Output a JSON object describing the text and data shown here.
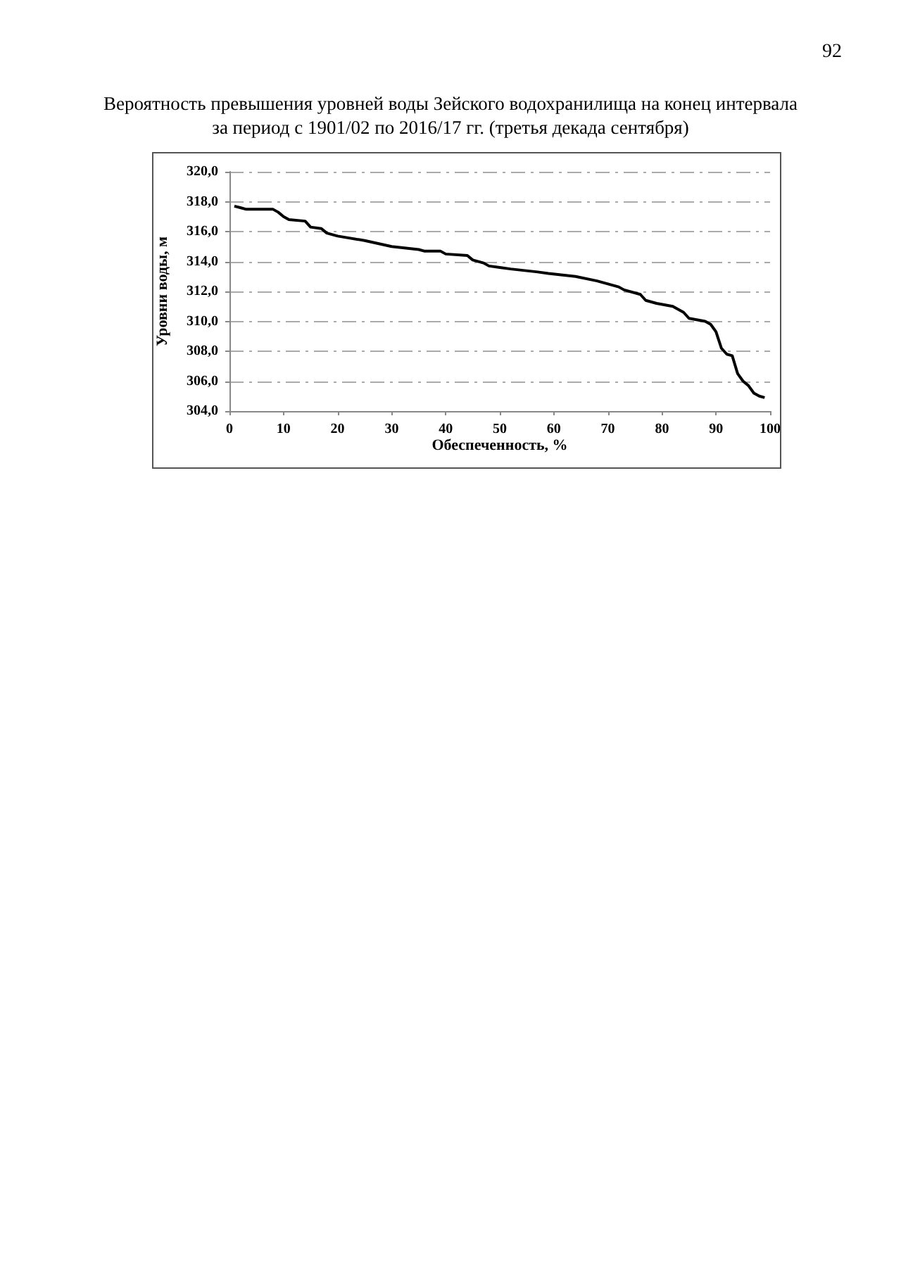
{
  "chart_data": {
    "type": "line",
    "title": "Вероятность превышения уровней воды Зейского водохранилища на конец интервала\nза период с 1901/02 по 2016/17 гг. (третья декада сентября)",
    "xlabel": "Обеспеченность, %",
    "ylabel": "Уровни воды, м",
    "annotations": [
      "92"
    ],
    "x": [
      0.9,
      2,
      3,
      8,
      9,
      10,
      11,
      14,
      15,
      17,
      18,
      20,
      25,
      30,
      35,
      36,
      39,
      40,
      44,
      45,
      47,
      48,
      50,
      52,
      57,
      59,
      64,
      68,
      70,
      72,
      73,
      76,
      77,
      79,
      82,
      84,
      85,
      88,
      89,
      90,
      91,
      92,
      93,
      94,
      95,
      96,
      97,
      98,
      99
    ],
    "series": [
      {
        "color": "#000000",
        "values": [
          317.7,
          317.6,
          317.5,
          317.5,
          317.3,
          317.0,
          316.8,
          316.7,
          316.3,
          316.2,
          315.9,
          315.7,
          315.4,
          315.0,
          314.8,
          314.7,
          314.7,
          314.5,
          314.4,
          314.1,
          313.9,
          313.7,
          313.6,
          313.5,
          313.3,
          313.2,
          313.0,
          312.7,
          312.5,
          312.3,
          312.1,
          311.8,
          311.4,
          311.2,
          311.0,
          310.6,
          310.2,
          310.0,
          309.8,
          309.3,
          308.2,
          307.8,
          307.7,
          306.5,
          306.0,
          305.7,
          305.2,
          305.0,
          304.9
        ]
      }
    ],
    "xlim": [
      0,
      100
    ],
    "xticks": [
      0,
      10,
      20,
      30,
      40,
      50,
      60,
      70,
      80,
      90,
      100
    ],
    "ylim": [
      304,
      320
    ],
    "yticks": [
      {
        "value": 304,
        "label": "304,0"
      },
      {
        "value": 306,
        "label": "306,0"
      },
      {
        "value": 308,
        "label": "308,0"
      },
      {
        "value": 310,
        "label": "310,0"
      },
      {
        "value": 312,
        "label": "312,0"
      },
      {
        "value": 314,
        "label": "314,0"
      },
      {
        "value": 316,
        "label": "316,0"
      },
      {
        "value": 318,
        "label": "318,0"
      },
      {
        "value": 320,
        "label": "320,0"
      }
    ],
    "grid": "y",
    "marker": "none",
    "line_style": "solid"
  }
}
